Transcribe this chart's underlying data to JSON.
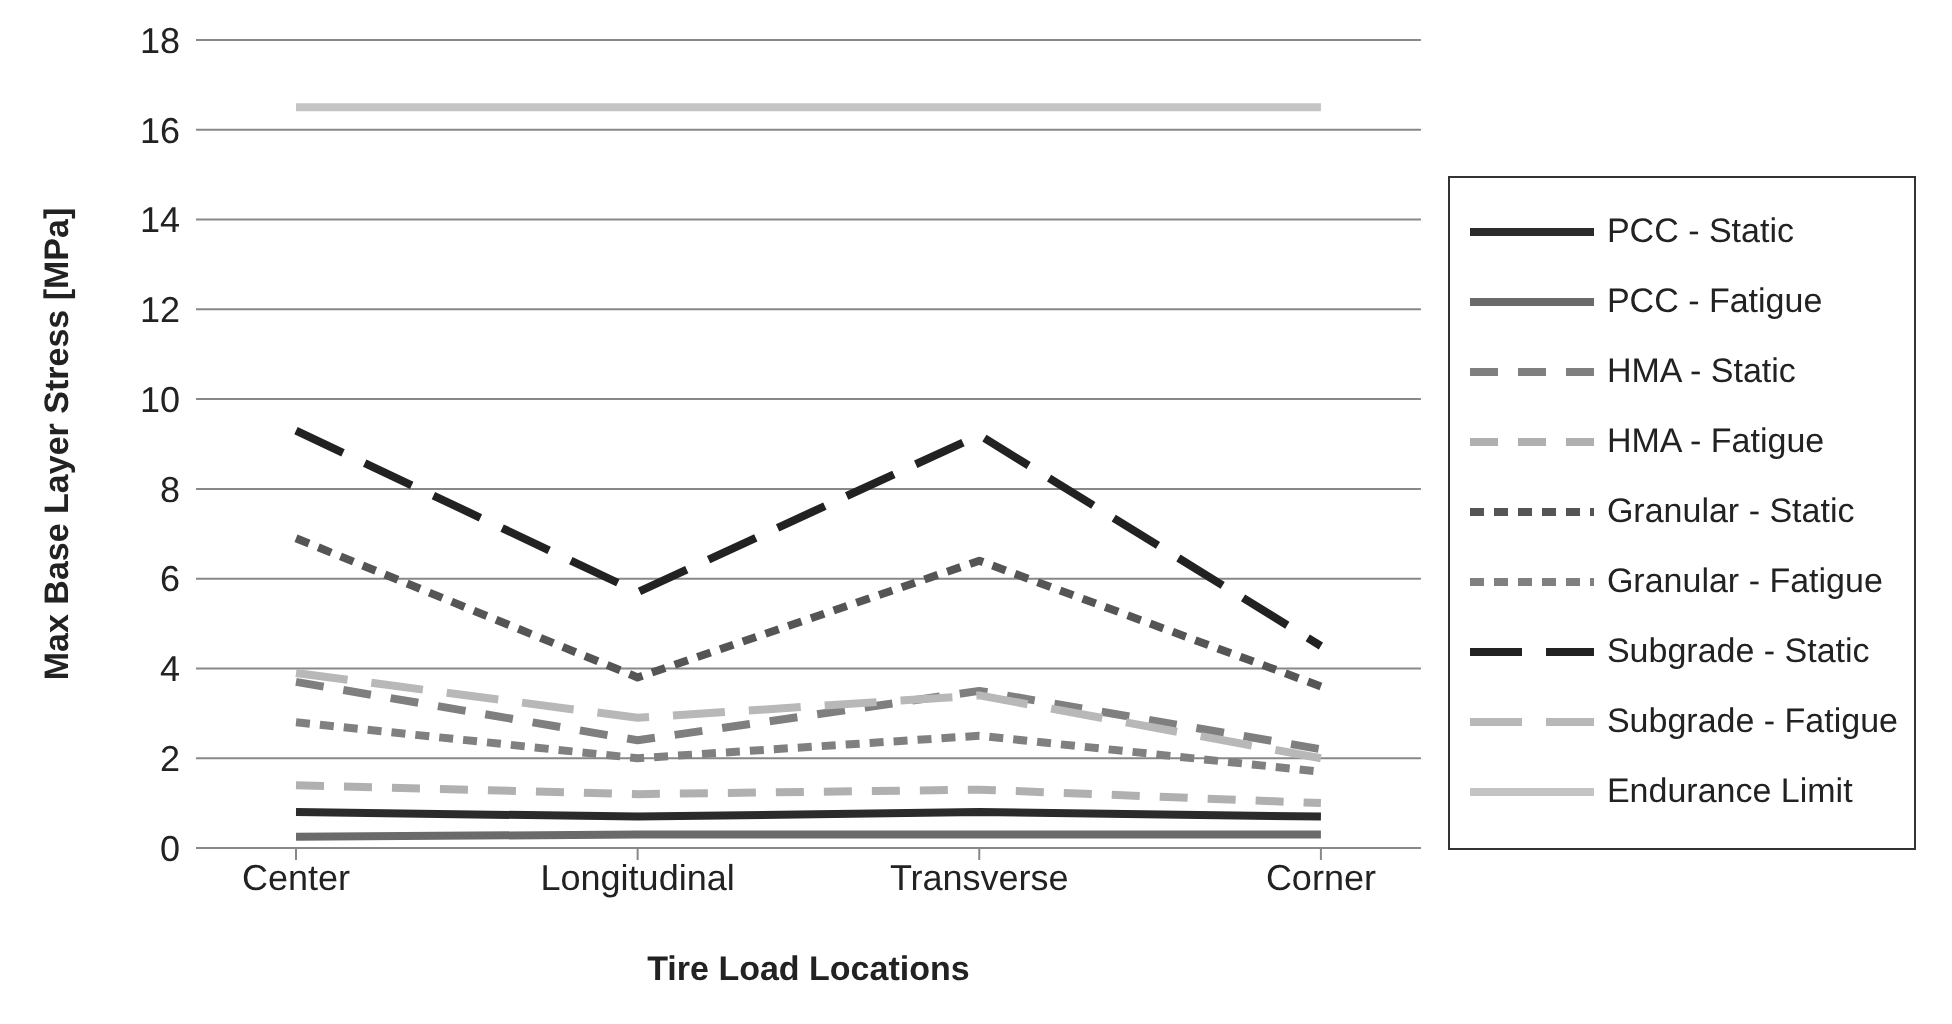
{
  "chart_data": {
    "type": "line",
    "xlabel": "Tire Load Locations",
    "ylabel": "Max Base Layer Stress [MPa]",
    "categories": [
      "Center",
      "Longitudinal",
      "Transverse",
      "Corner"
    ],
    "ylim": [
      0,
      18
    ],
    "yticks": [
      0,
      2,
      4,
      6,
      8,
      10,
      12,
      14,
      16,
      18
    ],
    "grid": "y",
    "legend": "right",
    "marker": "none",
    "series": [
      {
        "name": "PCC - Static",
        "color": "#2b2b2b",
        "line_style": "solid",
        "values": [
          0.8,
          0.7,
          0.8,
          0.7
        ]
      },
      {
        "name": "PCC - Fatigue",
        "color": "#6a6a6a",
        "line_style": "solid",
        "values": [
          0.25,
          0.3,
          0.3,
          0.3
        ]
      },
      {
        "name": "HMA - Static",
        "color": "#7f7f7f",
        "line_style": "dashed",
        "values": [
          3.7,
          2.4,
          3.5,
          2.2
        ]
      },
      {
        "name": "HMA - Fatigue",
        "color": "#b0b0b0",
        "line_style": "dashed",
        "values": [
          1.4,
          1.2,
          1.3,
          1.0
        ]
      },
      {
        "name": "Granular - Static",
        "color": "#555555",
        "line_style": "dotted",
        "values": [
          6.9,
          3.8,
          6.4,
          3.6
        ]
      },
      {
        "name": "Granular - Fatigue",
        "color": "#808080",
        "line_style": "dotted",
        "values": [
          2.8,
          2.0,
          2.5,
          1.7
        ]
      },
      {
        "name": "Subgrade - Static",
        "color": "#222222",
        "line_style": "longdash",
        "values": [
          9.3,
          5.7,
          9.2,
          4.5
        ]
      },
      {
        "name": "Subgrade - Fatigue",
        "color": "#b8b8b8",
        "line_style": "longdash",
        "values": [
          3.9,
          2.9,
          3.4,
          2.0
        ]
      },
      {
        "name": "Endurance Limit",
        "color": "#c4c4c4",
        "line_style": "solid",
        "values": [
          16.5,
          16.5,
          16.5,
          16.5
        ]
      }
    ]
  }
}
